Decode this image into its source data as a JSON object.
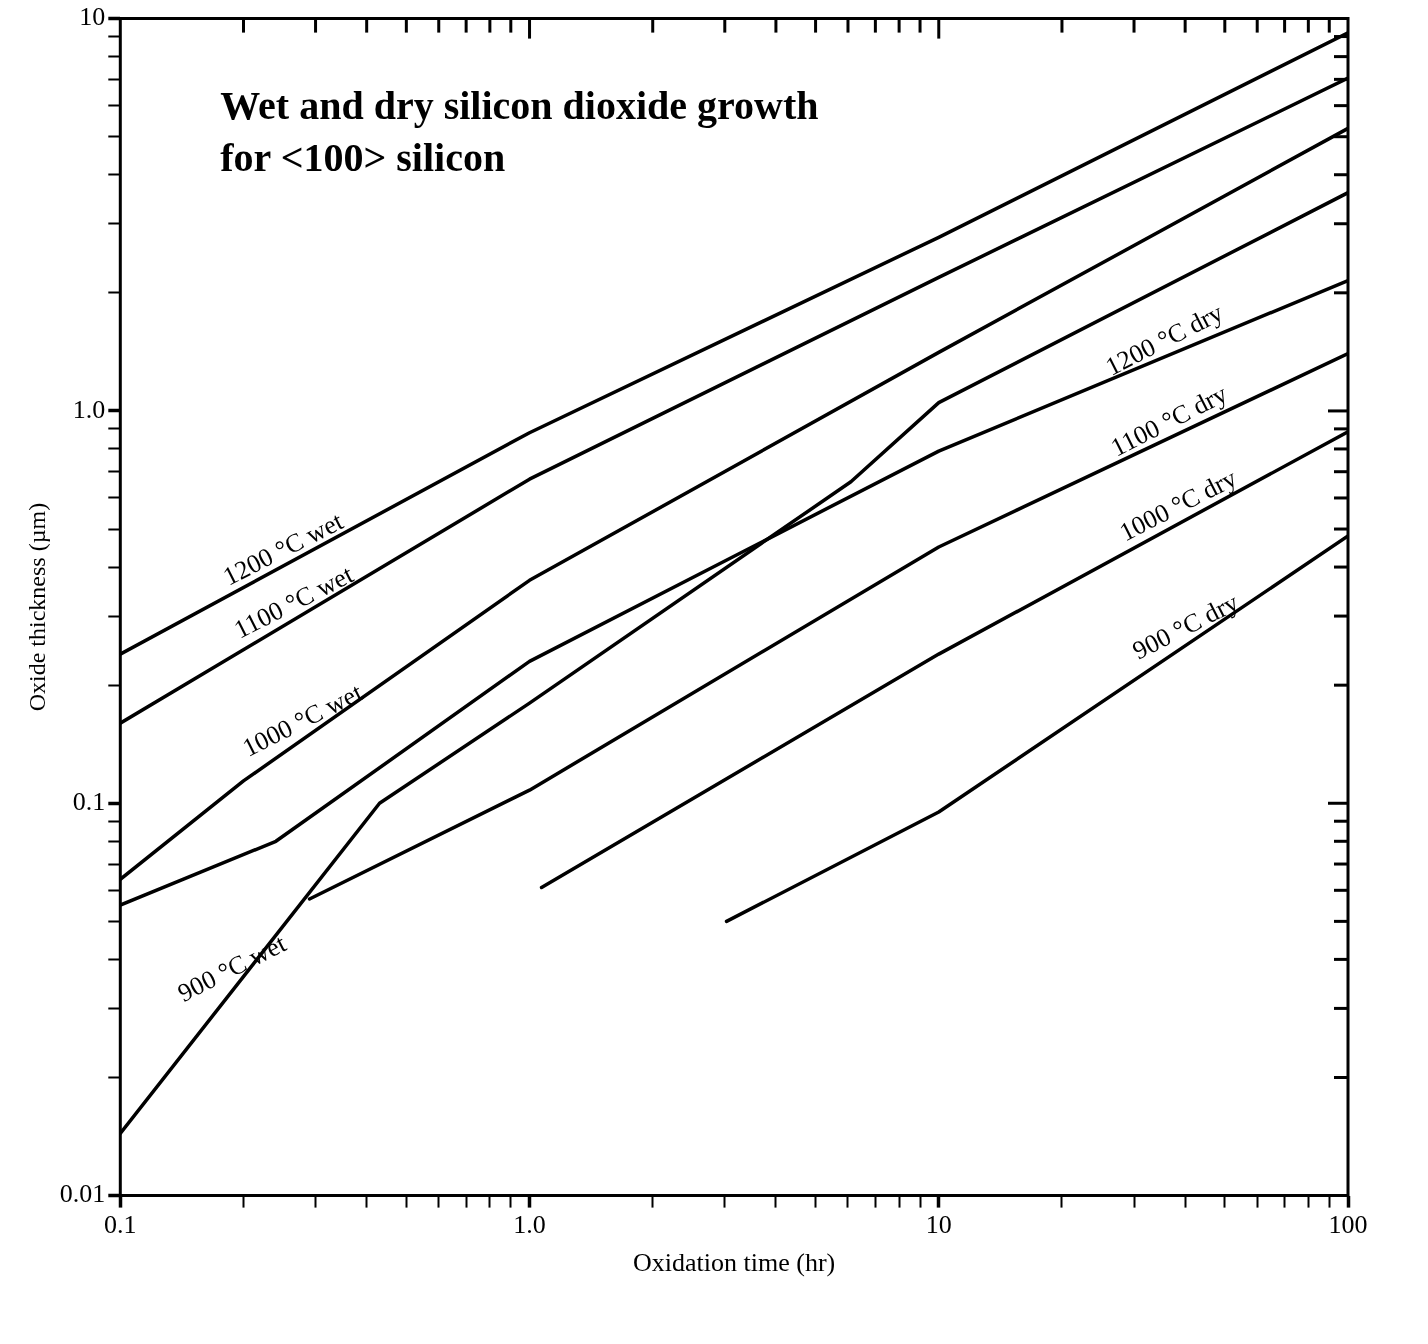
{
  "chart_data": {
    "type": "line",
    "title": "Wet and dry silicon dioxide growth\nfor <100> silicon",
    "xlabel": "Oxidation time (hr)",
    "ylabel": "Oxide thickness (µm)",
    "log": "xy",
    "grid": false,
    "legend": false,
    "marker": "none",
    "line_style": "solid",
    "xlim": [
      0.1,
      100
    ],
    "ylim": [
      0.01,
      10
    ],
    "xticks": [
      {
        "value": 0.1,
        "label": "0.1"
      },
      {
        "value": 0.2,
        "label": null
      },
      {
        "value": 0.3,
        "label": null
      },
      {
        "value": 0.4,
        "label": null
      },
      {
        "value": 0.5,
        "label": null
      },
      {
        "value": 0.6,
        "label": null
      },
      {
        "value": 0.7,
        "label": null
      },
      {
        "value": 0.8,
        "label": null
      },
      {
        "value": 0.9,
        "label": null
      },
      {
        "value": 1,
        "label": "1.0"
      },
      {
        "value": 2,
        "label": null
      },
      {
        "value": 3,
        "label": null
      },
      {
        "value": 4,
        "label": null
      },
      {
        "value": 5,
        "label": null
      },
      {
        "value": 6,
        "label": null
      },
      {
        "value": 7,
        "label": null
      },
      {
        "value": 8,
        "label": null
      },
      {
        "value": 9,
        "label": null
      },
      {
        "value": 10,
        "label": "10"
      },
      {
        "value": 20,
        "label": null
      },
      {
        "value": 30,
        "label": null
      },
      {
        "value": 40,
        "label": null
      },
      {
        "value": 50,
        "label": null
      },
      {
        "value": 60,
        "label": null
      },
      {
        "value": 70,
        "label": null
      },
      {
        "value": 80,
        "label": null
      },
      {
        "value": 90,
        "label": null
      },
      {
        "value": 100,
        "label": "100"
      }
    ],
    "yticks": [
      {
        "value": 0.01,
        "label": "0.01"
      },
      {
        "value": 0.02,
        "label": null
      },
      {
        "value": 0.03,
        "label": null
      },
      {
        "value": 0.04,
        "label": null
      },
      {
        "value": 0.05,
        "label": null
      },
      {
        "value": 0.06,
        "label": null
      },
      {
        "value": 0.07,
        "label": null
      },
      {
        "value": 0.08,
        "label": null
      },
      {
        "value": 0.09,
        "label": null
      },
      {
        "value": 0.1,
        "label": "0.1"
      },
      {
        "value": 0.2,
        "label": null
      },
      {
        "value": 0.3,
        "label": null
      },
      {
        "value": 0.4,
        "label": null
      },
      {
        "value": 0.5,
        "label": null
      },
      {
        "value": 0.6,
        "label": null
      },
      {
        "value": 0.7,
        "label": null
      },
      {
        "value": 0.8,
        "label": null
      },
      {
        "value": 0.9,
        "label": null
      },
      {
        "value": 1,
        "label": "1.0"
      },
      {
        "value": 2,
        "label": null
      },
      {
        "value": 3,
        "label": null
      },
      {
        "value": 4,
        "label": null
      },
      {
        "value": 5,
        "label": null
      },
      {
        "value": 6,
        "label": null
      },
      {
        "value": 7,
        "label": null
      },
      {
        "value": 8,
        "label": null
      },
      {
        "value": 9,
        "label": null
      },
      {
        "value": 10,
        "label": "10"
      }
    ],
    "series": [
      {
        "color": "#000000",
        "x": [
          0.1,
          1,
          10,
          100
        ],
        "values": [
          0.24,
          0.88,
          2.77,
          9.2
        ]
      },
      {
        "color": "#000000",
        "x": [
          0.1,
          1,
          10,
          100
        ],
        "values": [
          0.16,
          0.67,
          2.19,
          7.05
        ]
      },
      {
        "color": "#000000",
        "x": [
          0.1,
          0.2,
          1,
          10,
          100
        ],
        "values": [
          0.064,
          0.114,
          0.37,
          1.41,
          5.25
        ]
      },
      {
        "color": "#000000",
        "x": [
          0.1,
          0.43,
          1,
          6.1,
          10,
          100
        ],
        "values": [
          0.0144,
          0.1,
          0.18,
          0.66,
          1.05,
          3.6
        ]
      },
      {
        "color": "#000000",
        "x": [
          0.1,
          0.24,
          1,
          10,
          100
        ],
        "values": [
          0.055,
          0.08,
          0.23,
          0.79,
          2.15
        ]
      },
      {
        "color": "#000000",
        "x": [
          0.29,
          1,
          10,
          100
        ],
        "values": [
          0.057,
          0.108,
          0.45,
          1.4
        ]
      },
      {
        "color": "#000000",
        "x": [
          1.07,
          10,
          100
        ],
        "values": [
          0.061,
          0.24,
          0.885
        ]
      },
      {
        "color": "#000000",
        "x": [
          3.03,
          10,
          100
        ],
        "values": [
          0.05,
          0.095,
          0.48
        ]
      }
    ],
    "annotations": [
      {
        "text": "1200 °C wet",
        "x": 0.26,
        "y": 0.41
      },
      {
        "text": "1100 °C wet",
        "x": 0.276,
        "y": 0.3
      },
      {
        "text": "1000 °C wet",
        "x": 0.29,
        "y": 0.15
      },
      {
        "text": "900 °C wet",
        "x": 0.195,
        "y": 0.035
      },
      {
        "text": "1200 °C dry",
        "x": 37,
        "y": 1.4
      },
      {
        "text": "1100 °C dry",
        "x": 38,
        "y": 0.87
      },
      {
        "text": "1000 °C dry",
        "x": 40,
        "y": 0.53
      },
      {
        "text": "900 °C dry",
        "x": 41.7,
        "y": 0.26
      }
    ]
  }
}
